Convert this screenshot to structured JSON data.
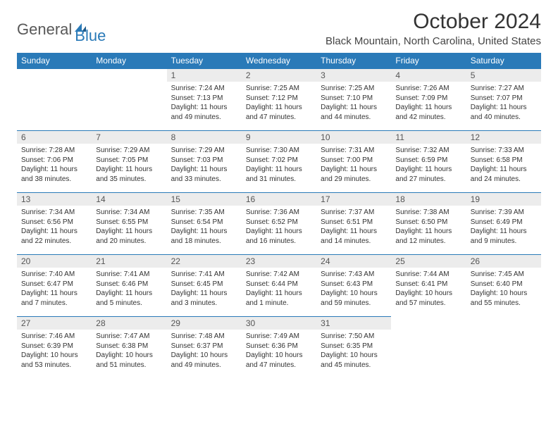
{
  "logo": {
    "text1": "General",
    "text2": "Blue"
  },
  "title": "October 2024",
  "location": "Black Mountain, North Carolina, United States",
  "colors": {
    "header_bg": "#2a7ab8",
    "header_text": "#ffffff",
    "daynum_bg": "#ececec",
    "border": "#2a7ab8"
  },
  "weekdays": [
    "Sunday",
    "Monday",
    "Tuesday",
    "Wednesday",
    "Thursday",
    "Friday",
    "Saturday"
  ],
  "firstDayOffset": 2,
  "daysInMonth": 31,
  "days": [
    {
      "n": 1,
      "sunrise": "Sunrise: 7:24 AM",
      "sunset": "Sunset: 7:13 PM",
      "daylight": "Daylight: 11 hours and 49 minutes."
    },
    {
      "n": 2,
      "sunrise": "Sunrise: 7:25 AM",
      "sunset": "Sunset: 7:12 PM",
      "daylight": "Daylight: 11 hours and 47 minutes."
    },
    {
      "n": 3,
      "sunrise": "Sunrise: 7:25 AM",
      "sunset": "Sunset: 7:10 PM",
      "daylight": "Daylight: 11 hours and 44 minutes."
    },
    {
      "n": 4,
      "sunrise": "Sunrise: 7:26 AM",
      "sunset": "Sunset: 7:09 PM",
      "daylight": "Daylight: 11 hours and 42 minutes."
    },
    {
      "n": 5,
      "sunrise": "Sunrise: 7:27 AM",
      "sunset": "Sunset: 7:07 PM",
      "daylight": "Daylight: 11 hours and 40 minutes."
    },
    {
      "n": 6,
      "sunrise": "Sunrise: 7:28 AM",
      "sunset": "Sunset: 7:06 PM",
      "daylight": "Daylight: 11 hours and 38 minutes."
    },
    {
      "n": 7,
      "sunrise": "Sunrise: 7:29 AM",
      "sunset": "Sunset: 7:05 PM",
      "daylight": "Daylight: 11 hours and 35 minutes."
    },
    {
      "n": 8,
      "sunrise": "Sunrise: 7:29 AM",
      "sunset": "Sunset: 7:03 PM",
      "daylight": "Daylight: 11 hours and 33 minutes."
    },
    {
      "n": 9,
      "sunrise": "Sunrise: 7:30 AM",
      "sunset": "Sunset: 7:02 PM",
      "daylight": "Daylight: 11 hours and 31 minutes."
    },
    {
      "n": 10,
      "sunrise": "Sunrise: 7:31 AM",
      "sunset": "Sunset: 7:00 PM",
      "daylight": "Daylight: 11 hours and 29 minutes."
    },
    {
      "n": 11,
      "sunrise": "Sunrise: 7:32 AM",
      "sunset": "Sunset: 6:59 PM",
      "daylight": "Daylight: 11 hours and 27 minutes."
    },
    {
      "n": 12,
      "sunrise": "Sunrise: 7:33 AM",
      "sunset": "Sunset: 6:58 PM",
      "daylight": "Daylight: 11 hours and 24 minutes."
    },
    {
      "n": 13,
      "sunrise": "Sunrise: 7:34 AM",
      "sunset": "Sunset: 6:56 PM",
      "daylight": "Daylight: 11 hours and 22 minutes."
    },
    {
      "n": 14,
      "sunrise": "Sunrise: 7:34 AM",
      "sunset": "Sunset: 6:55 PM",
      "daylight": "Daylight: 11 hours and 20 minutes."
    },
    {
      "n": 15,
      "sunrise": "Sunrise: 7:35 AM",
      "sunset": "Sunset: 6:54 PM",
      "daylight": "Daylight: 11 hours and 18 minutes."
    },
    {
      "n": 16,
      "sunrise": "Sunrise: 7:36 AM",
      "sunset": "Sunset: 6:52 PM",
      "daylight": "Daylight: 11 hours and 16 minutes."
    },
    {
      "n": 17,
      "sunrise": "Sunrise: 7:37 AM",
      "sunset": "Sunset: 6:51 PM",
      "daylight": "Daylight: 11 hours and 14 minutes."
    },
    {
      "n": 18,
      "sunrise": "Sunrise: 7:38 AM",
      "sunset": "Sunset: 6:50 PM",
      "daylight": "Daylight: 11 hours and 12 minutes."
    },
    {
      "n": 19,
      "sunrise": "Sunrise: 7:39 AM",
      "sunset": "Sunset: 6:49 PM",
      "daylight": "Daylight: 11 hours and 9 minutes."
    },
    {
      "n": 20,
      "sunrise": "Sunrise: 7:40 AM",
      "sunset": "Sunset: 6:47 PM",
      "daylight": "Daylight: 11 hours and 7 minutes."
    },
    {
      "n": 21,
      "sunrise": "Sunrise: 7:41 AM",
      "sunset": "Sunset: 6:46 PM",
      "daylight": "Daylight: 11 hours and 5 minutes."
    },
    {
      "n": 22,
      "sunrise": "Sunrise: 7:41 AM",
      "sunset": "Sunset: 6:45 PM",
      "daylight": "Daylight: 11 hours and 3 minutes."
    },
    {
      "n": 23,
      "sunrise": "Sunrise: 7:42 AM",
      "sunset": "Sunset: 6:44 PM",
      "daylight": "Daylight: 11 hours and 1 minute."
    },
    {
      "n": 24,
      "sunrise": "Sunrise: 7:43 AM",
      "sunset": "Sunset: 6:43 PM",
      "daylight": "Daylight: 10 hours and 59 minutes."
    },
    {
      "n": 25,
      "sunrise": "Sunrise: 7:44 AM",
      "sunset": "Sunset: 6:41 PM",
      "daylight": "Daylight: 10 hours and 57 minutes."
    },
    {
      "n": 26,
      "sunrise": "Sunrise: 7:45 AM",
      "sunset": "Sunset: 6:40 PM",
      "daylight": "Daylight: 10 hours and 55 minutes."
    },
    {
      "n": 27,
      "sunrise": "Sunrise: 7:46 AM",
      "sunset": "Sunset: 6:39 PM",
      "daylight": "Daylight: 10 hours and 53 minutes."
    },
    {
      "n": 28,
      "sunrise": "Sunrise: 7:47 AM",
      "sunset": "Sunset: 6:38 PM",
      "daylight": "Daylight: 10 hours and 51 minutes."
    },
    {
      "n": 29,
      "sunrise": "Sunrise: 7:48 AM",
      "sunset": "Sunset: 6:37 PM",
      "daylight": "Daylight: 10 hours and 49 minutes."
    },
    {
      "n": 30,
      "sunrise": "Sunrise: 7:49 AM",
      "sunset": "Sunset: 6:36 PM",
      "daylight": "Daylight: 10 hours and 47 minutes."
    },
    {
      "n": 31,
      "sunrise": "Sunrise: 7:50 AM",
      "sunset": "Sunset: 6:35 PM",
      "daylight": "Daylight: 10 hours and 45 minutes."
    }
  ]
}
